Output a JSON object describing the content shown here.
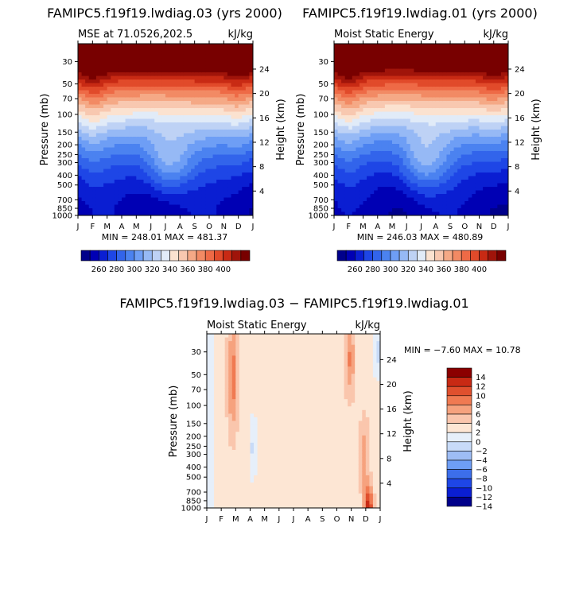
{
  "colors": {
    "mse_scale": [
      "#00008b",
      "#0000b4",
      "#0a1ed2",
      "#1e46e6",
      "#3264eb",
      "#4b82f0",
      "#6e9ef5",
      "#96b9f5",
      "#bed2f5",
      "#e1ebf8",
      "#fbe2d0",
      "#f8c8b0",
      "#f5a986",
      "#f28a64",
      "#ee6a46",
      "#e14a2a",
      "#c82a14",
      "#a0140a",
      "#780000"
    ],
    "diff_scale": [
      "#00008b",
      "#0a1ed2",
      "#1e46e6",
      "#3c6eeb",
      "#6e9ef5",
      "#9ebdf5",
      "#c8dbf8",
      "#e6effa",
      "#fde6d4",
      "#fac6ad",
      "#f6a27e",
      "#f07a52",
      "#e0502e",
      "#c82a14",
      "#8b0000"
    ]
  },
  "figure1": {
    "title": "FAMIPC5.f19f19.lwdiag.03 (yrs 2000)",
    "subtitle_left": "MSE at 71.0526,202.5",
    "subtitle_right": "kJ/kg",
    "ylabel_left": "Pressure (mb)",
    "ylabel_right": "Height (km)",
    "minmax": "MIN = 248.01  MAX = 481.37"
  },
  "figure2": {
    "title": "FAMIPC5.f19f19.lwdiag.01 (yrs 2000)",
    "subtitle_left": "Moist Static Energy",
    "subtitle_right": "kJ/kg",
    "ylabel_left": "Pressure (mb)",
    "ylabel_right": "Height (km)",
    "minmax": "MIN = 246.03  MAX = 480.89"
  },
  "figure3": {
    "title": "FAMIPC5.f19f19.lwdiag.03 − FAMIPC5.f19f19.lwdiag.01",
    "subtitle_left": "Moist Static Energy",
    "subtitle_right": "kJ/kg",
    "ylabel_left": "Pressure (mb)",
    "ylabel_right": "Height (km)",
    "minmax": "MIN =  −7.60 MAX =  10.78"
  },
  "chart_data": [
    {
      "type": "heatmap",
      "title": "FAMIPC5.f19f19.lwdiag.03 (yrs 2000)",
      "subtitle": "MSE at 71.0526,202.5",
      "units": "kJ/kg",
      "x_ticks": [
        "J",
        "F",
        "M",
        "A",
        "M",
        "J",
        "J",
        "A",
        "S",
        "O",
        "N",
        "D",
        "J"
      ],
      "y_ticks_pressure": [
        "30",
        "50",
        "70",
        "100",
        "150",
        "200",
        "250",
        "300",
        "400",
        "500",
        "700",
        "850",
        "1000"
      ],
      "y_ticks_height": [
        "24",
        "20",
        "16",
        "12",
        "8",
        "4"
      ],
      "ylim_pressure": [
        1000,
        20
      ],
      "xlabel": "",
      "ylabel": "Pressure (mb)",
      "y2label": "Height (km)",
      "colorbar_ticks": [
        "260",
        "280",
        "300",
        "320",
        "340",
        "360",
        "380",
        "400"
      ],
      "min": 248.01,
      "max": 481.37
    },
    {
      "type": "heatmap",
      "title": "FAMIPC5.f19f19.lwdiag.01 (yrs 2000)",
      "subtitle": "Moist Static Energy",
      "units": "kJ/kg",
      "x_ticks": [
        "J",
        "F",
        "M",
        "A",
        "M",
        "J",
        "J",
        "A",
        "S",
        "O",
        "N",
        "D",
        "J"
      ],
      "y_ticks_pressure": [
        "30",
        "50",
        "70",
        "100",
        "150",
        "200",
        "250",
        "300",
        "400",
        "500",
        "700",
        "850",
        "1000"
      ],
      "y_ticks_height": [
        "24",
        "20",
        "16",
        "12",
        "8",
        "4"
      ],
      "ylim_pressure": [
        1000,
        20
      ],
      "ylabel": "Pressure (mb)",
      "y2label": "Height (km)",
      "colorbar_ticks": [
        "260",
        "280",
        "300",
        "320",
        "340",
        "360",
        "380",
        "400"
      ],
      "min": 246.03,
      "max": 480.89
    },
    {
      "type": "heatmap",
      "title": "FAMIPC5.f19f19.lwdiag.03 − FAMIPC5.f19f19.lwdiag.01",
      "subtitle": "Moist Static Energy",
      "units": "kJ/kg",
      "x_ticks": [
        "J",
        "F",
        "M",
        "A",
        "M",
        "J",
        "J",
        "A",
        "S",
        "O",
        "N",
        "D",
        "J"
      ],
      "y_ticks_pressure": [
        "30",
        "50",
        "70",
        "100",
        "150",
        "200",
        "250",
        "300",
        "400",
        "500",
        "700",
        "850",
        "1000"
      ],
      "y_ticks_height": [
        "24",
        "20",
        "16",
        "12",
        "8",
        "4"
      ],
      "ylim_pressure": [
        1000,
        20
      ],
      "ylabel": "Pressure (mb)",
      "y2label": "Height (km)",
      "colorbar_ticks": [
        "14",
        "12",
        "10",
        "8",
        "6",
        "4",
        "2",
        "0",
        "−2",
        "−4",
        "−6",
        "−8",
        "−10",
        "−12",
        "−14"
      ],
      "min": -7.6,
      "max": 10.78
    }
  ]
}
